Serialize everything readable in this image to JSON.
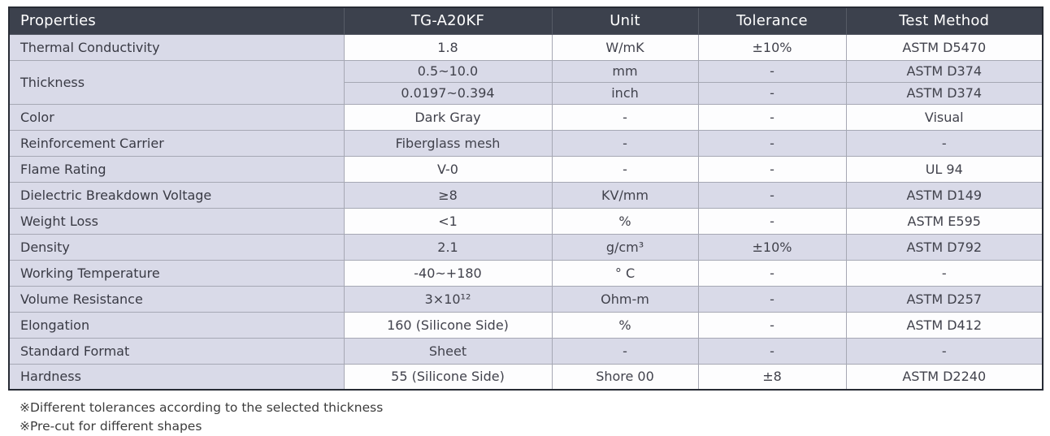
{
  "table": {
    "header": {
      "columns": [
        "Properties",
        "TG-A20KF",
        "Unit",
        "Tolerance",
        "Test Method"
      ]
    },
    "rows": [
      {
        "property": "Thermal Conductivity",
        "shade": false,
        "sub": [
          {
            "value": "1.8",
            "unit": "W/mK",
            "tolerance": "±10%",
            "test": "ASTM D5470"
          }
        ]
      },
      {
        "property": "Thickness",
        "shade": true,
        "sub": [
          {
            "value": "0.5~10.0",
            "unit": "mm",
            "tolerance": "-",
            "test": "ASTM D374"
          },
          {
            "value": "0.0197~0.394",
            "unit": "inch",
            "tolerance": "-",
            "test": "ASTM D374"
          }
        ]
      },
      {
        "property": "Color",
        "shade": false,
        "sub": [
          {
            "value": "Dark Gray",
            "unit": "-",
            "tolerance": "-",
            "test": "Visual"
          }
        ]
      },
      {
        "property": "Reinforcement Carrier",
        "shade": true,
        "sub": [
          {
            "value": "Fiberglass mesh",
            "unit": "-",
            "tolerance": "-",
            "test": "-"
          }
        ]
      },
      {
        "property": "Flame Rating",
        "shade": false,
        "sub": [
          {
            "value": "V-0",
            "unit": "-",
            "tolerance": "-",
            "test": "UL 94"
          }
        ]
      },
      {
        "property": "Dielectric Breakdown Voltage",
        "shade": true,
        "sub": [
          {
            "value": "≥8",
            "unit": "KV/mm",
            "tolerance": "-",
            "test": "ASTM D149"
          }
        ]
      },
      {
        "property": "Weight Loss",
        "shade": false,
        "sub": [
          {
            "value": "<1",
            "unit": "%",
            "tolerance": "-",
            "test": "ASTM E595"
          }
        ]
      },
      {
        "property": "Density",
        "shade": true,
        "sub": [
          {
            "value": "2.1",
            "unit": "g/cm³",
            "tolerance": "±10%",
            "test": "ASTM D792"
          }
        ]
      },
      {
        "property": "Working Temperature",
        "shade": false,
        "sub": [
          {
            "value": "-40~+180",
            "unit": "° C",
            "tolerance": "-",
            "test": "-"
          }
        ]
      },
      {
        "property": "Volume Resistance",
        "shade": true,
        "sub": [
          {
            "value": "3×10¹²",
            "unit": "Ohm-m",
            "tolerance": "-",
            "test": "ASTM D257"
          }
        ]
      },
      {
        "property": "Elongation",
        "shade": false,
        "sub": [
          {
            "value": "160 (Silicone Side)",
            "unit": "%",
            "tolerance": "-",
            "test": "ASTM D412"
          }
        ]
      },
      {
        "property": "Standard Format",
        "shade": true,
        "sub": [
          {
            "value": "Sheet",
            "unit": "-",
            "tolerance": "-",
            "test": "-"
          }
        ]
      },
      {
        "property": "Hardness",
        "shade": false,
        "sub": [
          {
            "value": "55 (Silicone Side)",
            "unit": "Shore 00",
            "tolerance": "±8",
            "test": "ASTM D2240"
          }
        ]
      }
    ]
  },
  "notes": [
    "※Different tolerances according to the selected thickness",
    "※Pre-cut for different shapes"
  ],
  "colors": {
    "header_bg": "#3c414d",
    "header_text": "#ffffff",
    "shade_row": "#d9dae8",
    "white_row": "#fdfdfe",
    "outer_border": "#272b34",
    "inner_border": "#a6a8b4",
    "body_text": "#41424c"
  }
}
